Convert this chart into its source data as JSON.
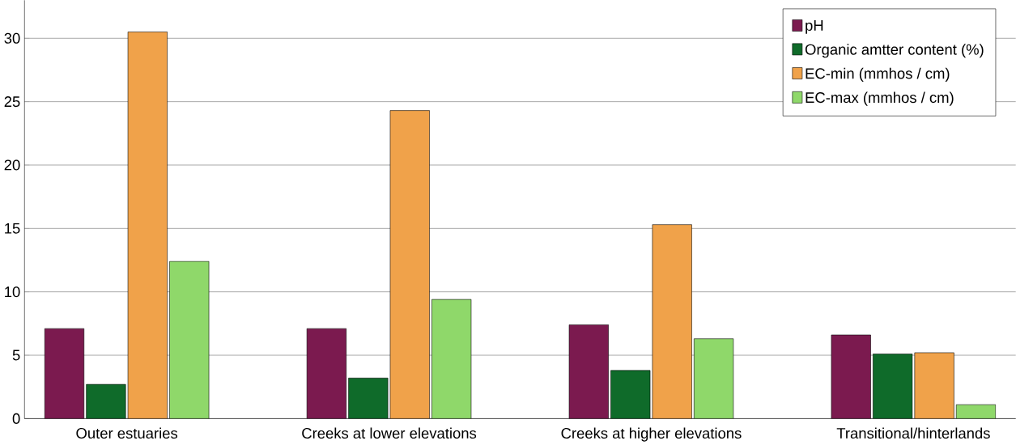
{
  "chart_data": {
    "type": "bar",
    "categories": [
      "Outer estuaries",
      "Creeks at lower elevations",
      "Creeks at higher elevations",
      "Transitional/hinterlands"
    ],
    "series": [
      {
        "name": "pH",
        "color": "#7b1a4f",
        "values": [
          7.1,
          7.1,
          7.4,
          6.6
        ]
      },
      {
        "name": "Organic amtter content (%)",
        "color": "#0f6b2a",
        "values": [
          2.7,
          3.2,
          3.8,
          5.1
        ]
      },
      {
        "name": "EC-min (mmhos / cm)",
        "color": "#f0a24a",
        "values": [
          30.5,
          24.3,
          15.3,
          5.2
        ]
      },
      {
        "name": "EC-max (mmhos / cm)",
        "color": "#8fd86a",
        "values": [
          12.4,
          9.4,
          6.3,
          1.1
        ]
      }
    ],
    "ylim": [
      0,
      33
    ],
    "yticks": [
      0,
      5,
      10,
      15,
      20,
      25,
      30
    ],
    "grid": "y",
    "legend": "top right"
  }
}
